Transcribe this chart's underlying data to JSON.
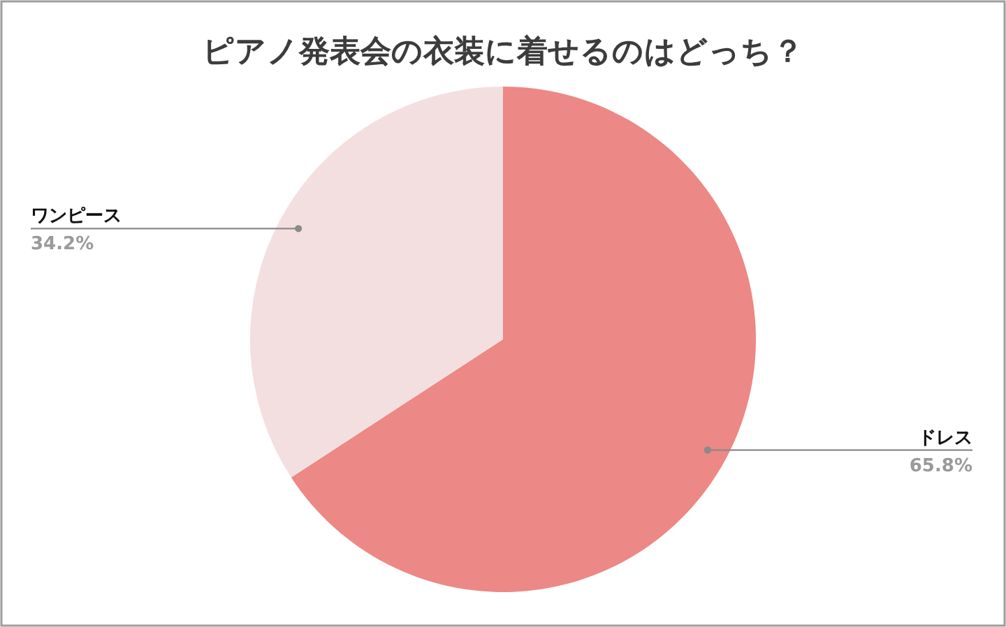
{
  "chart_data": {
    "type": "pie",
    "title": "ピアノ発表会の衣装に着せるのはどっち？",
    "categories": [
      "ドレス",
      "ワンピース"
    ],
    "values": [
      65.8,
      34.2
    ],
    "colors": [
      "#ec8885",
      "#f3dfdf"
    ],
    "value_labels": [
      "65.8%",
      "34.2%"
    ]
  }
}
